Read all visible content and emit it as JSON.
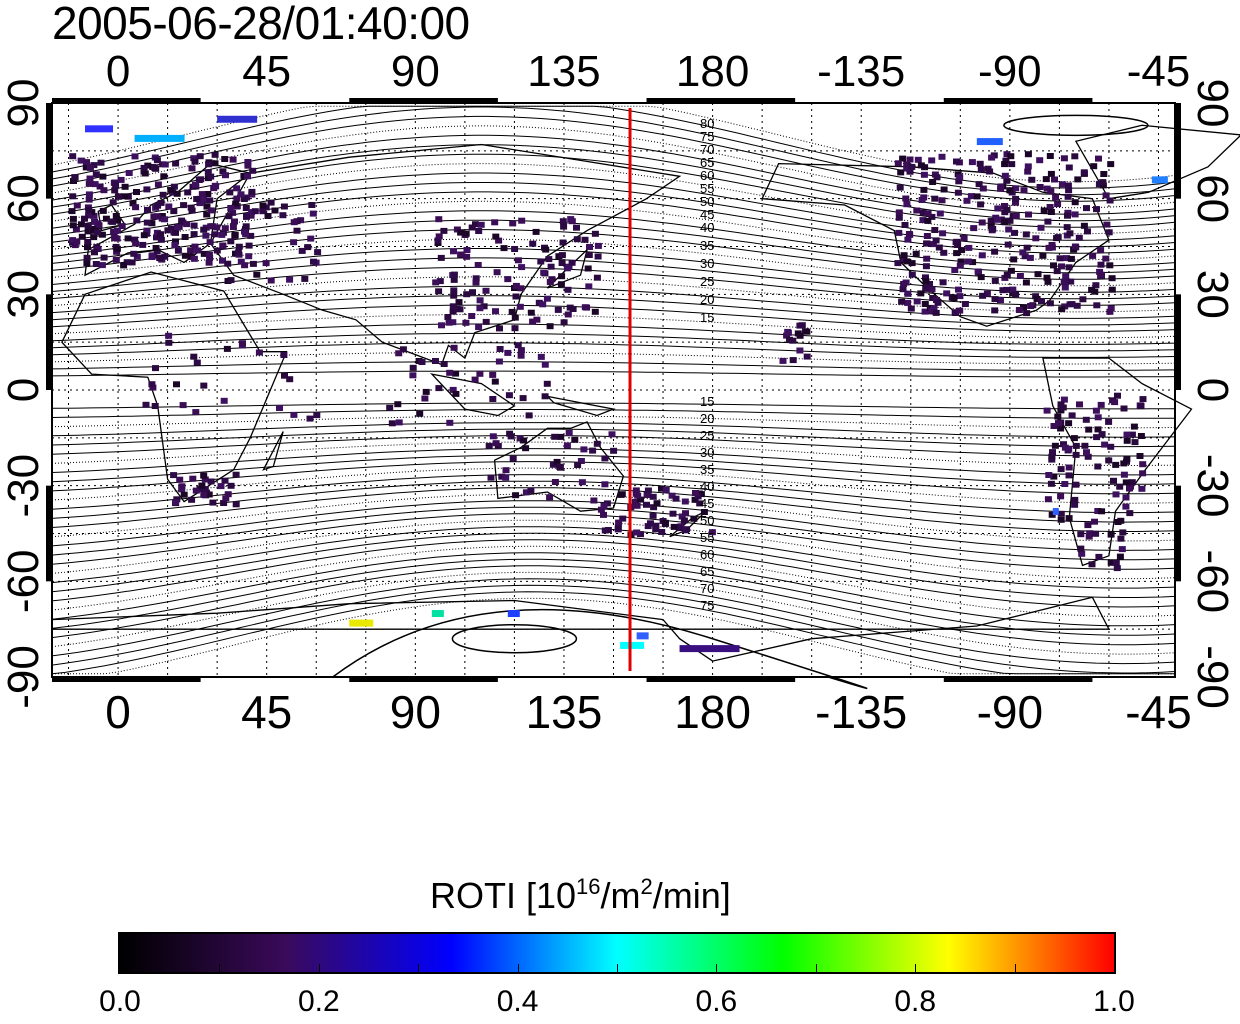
{
  "title": "2005-06-28/01:40:00",
  "map": {
    "lon_ticks": [
      0,
      45,
      90,
      135,
      180,
      225,
      270,
      315
    ],
    "lon_labels": [
      "0",
      "45",
      "90",
      "135",
      "180",
      "-135",
      "-90",
      "-45"
    ],
    "lat_ticks": [
      90,
      60,
      30,
      0,
      -30,
      -60,
      -90
    ],
    "lat_labels": [
      "90",
      "60",
      "30",
      "0",
      "-30",
      "-60",
      "-90"
    ],
    "lon_range": [
      -20,
      320
    ],
    "lat_range": [
      -90,
      90
    ],
    "grid": true,
    "red_line_lon": 155,
    "red_line_color": "#e00000",
    "contour_labels_north": [
      "80",
      "75",
      "70",
      "65",
      "60",
      "55",
      "50",
      "45",
      "40",
      "35",
      "30",
      "25",
      "20",
      "15"
    ],
    "contour_labels_south": [
      "15",
      "20",
      "25",
      "30",
      "35",
      "40",
      "45",
      "50",
      "55",
      "60",
      "65",
      "70",
      "75"
    ]
  },
  "colorbar": {
    "title_main": "ROTI  [10",
    "title_sup1": "16",
    "title_mid": "/m",
    "title_sup2": "2",
    "title_end": "/min]",
    "range": [
      0,
      1
    ],
    "tick_labels": [
      "0.0",
      "0.2",
      "0.4",
      "0.6",
      "0.8",
      "1.0"
    ],
    "tick_values": [
      0.0,
      0.2,
      0.4,
      0.6,
      0.8,
      1.0
    ],
    "colors": [
      "#000000",
      "#3a0a5a",
      "#0000ff",
      "#00ffff",
      "#00ff00",
      "#ffff00",
      "#ff0000"
    ]
  }
}
